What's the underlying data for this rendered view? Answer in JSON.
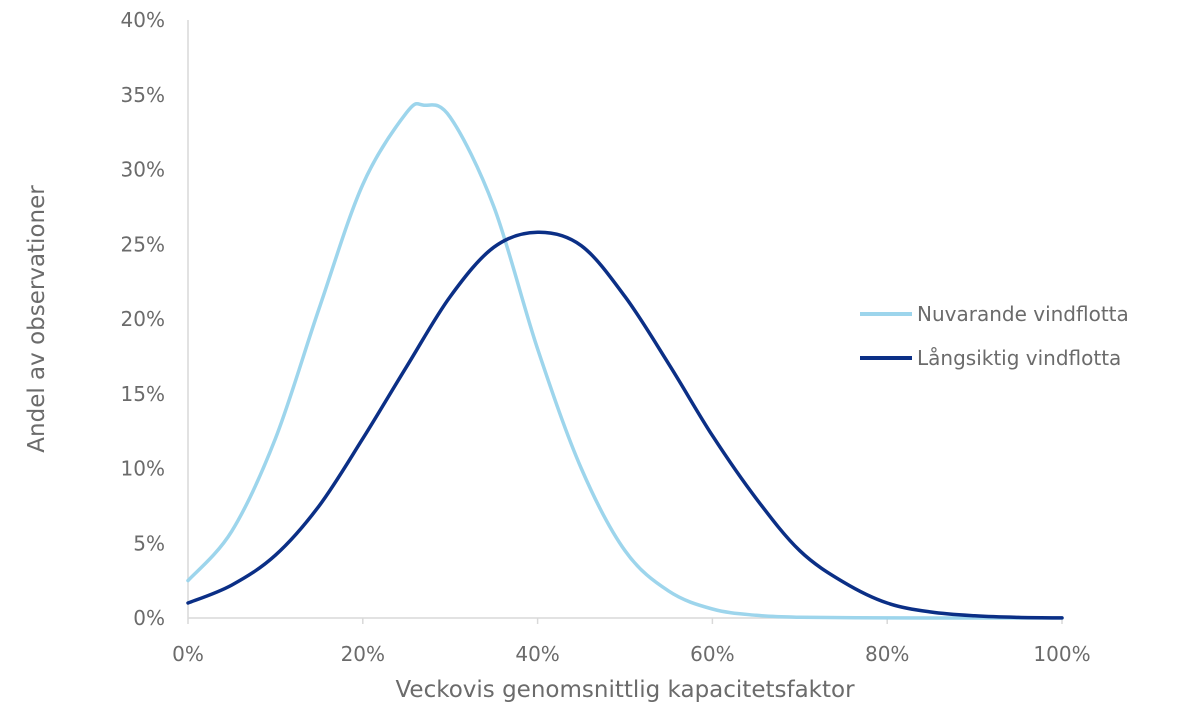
{
  "chart_data": {
    "type": "line",
    "title": "",
    "xlabel": "Veckovis genomsnittlig kapacitetsfaktor",
    "ylabel": "Andel av observationer",
    "xlim": [
      0,
      1
    ],
    "ylim": [
      0,
      0.4
    ],
    "x_ticks": [
      "0%",
      "20%",
      "40%",
      "60%",
      "80%",
      "100%"
    ],
    "y_ticks": [
      "0%",
      "5%",
      "10%",
      "15%",
      "20%",
      "25%",
      "30%",
      "35%",
      "40%"
    ],
    "grid": false,
    "legend_position": "right",
    "colors": {
      "current": "#9dd5ec",
      "longterm": "#0b2f86"
    },
    "series": [
      {
        "name": "Nuvarande vindflotta",
        "x": [
          0,
          0.05,
          0.1,
          0.15,
          0.2,
          0.25,
          0.27,
          0.3,
          0.35,
          0.4,
          0.45,
          0.5,
          0.55,
          0.6,
          0.65,
          0.7,
          0.8,
          0.9,
          1.0
        ],
        "y": [
          0.025,
          0.058,
          0.12,
          0.207,
          0.29,
          0.338,
          0.343,
          0.335,
          0.275,
          0.18,
          0.1,
          0.045,
          0.018,
          0.006,
          0.0018,
          0.0005,
          0.0001,
          0,
          0
        ]
      },
      {
        "name": "Långsiktig vindflotta",
        "x": [
          0,
          0.05,
          0.1,
          0.15,
          0.2,
          0.25,
          0.3,
          0.35,
          0.4,
          0.45,
          0.5,
          0.55,
          0.6,
          0.65,
          0.7,
          0.75,
          0.8,
          0.85,
          0.9,
          0.95,
          1.0
        ],
        "y": [
          0.01,
          0.022,
          0.042,
          0.075,
          0.12,
          0.168,
          0.215,
          0.248,
          0.258,
          0.249,
          0.215,
          0.17,
          0.122,
          0.08,
          0.045,
          0.024,
          0.01,
          0.004,
          0.0015,
          0.0004,
          0.0001
        ]
      }
    ]
  }
}
